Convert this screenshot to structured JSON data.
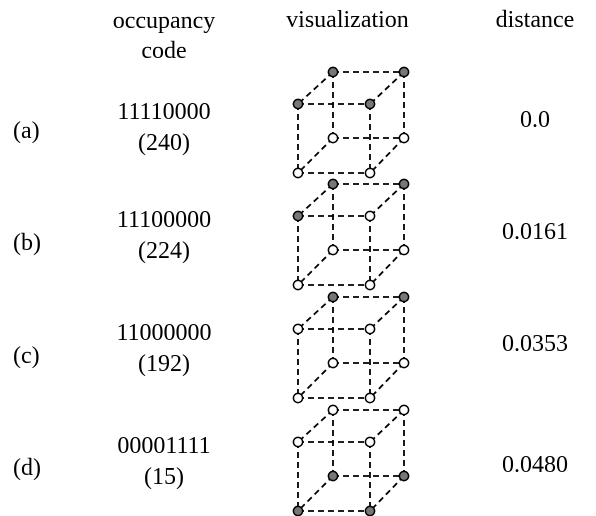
{
  "headers": {
    "code_line1": "occupancy",
    "code_line2": "code",
    "visualization": "visualization",
    "distance": "distance"
  },
  "rows": [
    {
      "label": "(a)",
      "code": "11110000",
      "decimal": "(240)",
      "distance": "0.0",
      "occupied": [
        0,
        1,
        2,
        3
      ]
    },
    {
      "label": "(b)",
      "code": "11100000",
      "decimal": "(224)",
      "distance": "0.0161",
      "occupied": [
        0,
        1,
        2
      ]
    },
    {
      "label": "(c)",
      "code": "11000000",
      "decimal": "(192)",
      "distance": "0.0353",
      "occupied": [
        0,
        1
      ]
    },
    {
      "label": "(d)",
      "code": "00001111",
      "decimal": "(15)",
      "distance": "0.0480",
      "occupied": [
        4,
        5,
        6,
        7
      ]
    }
  ],
  "colors": {
    "occupied": "#777777",
    "empty": "#ffffff",
    "stroke": "#000000"
  }
}
